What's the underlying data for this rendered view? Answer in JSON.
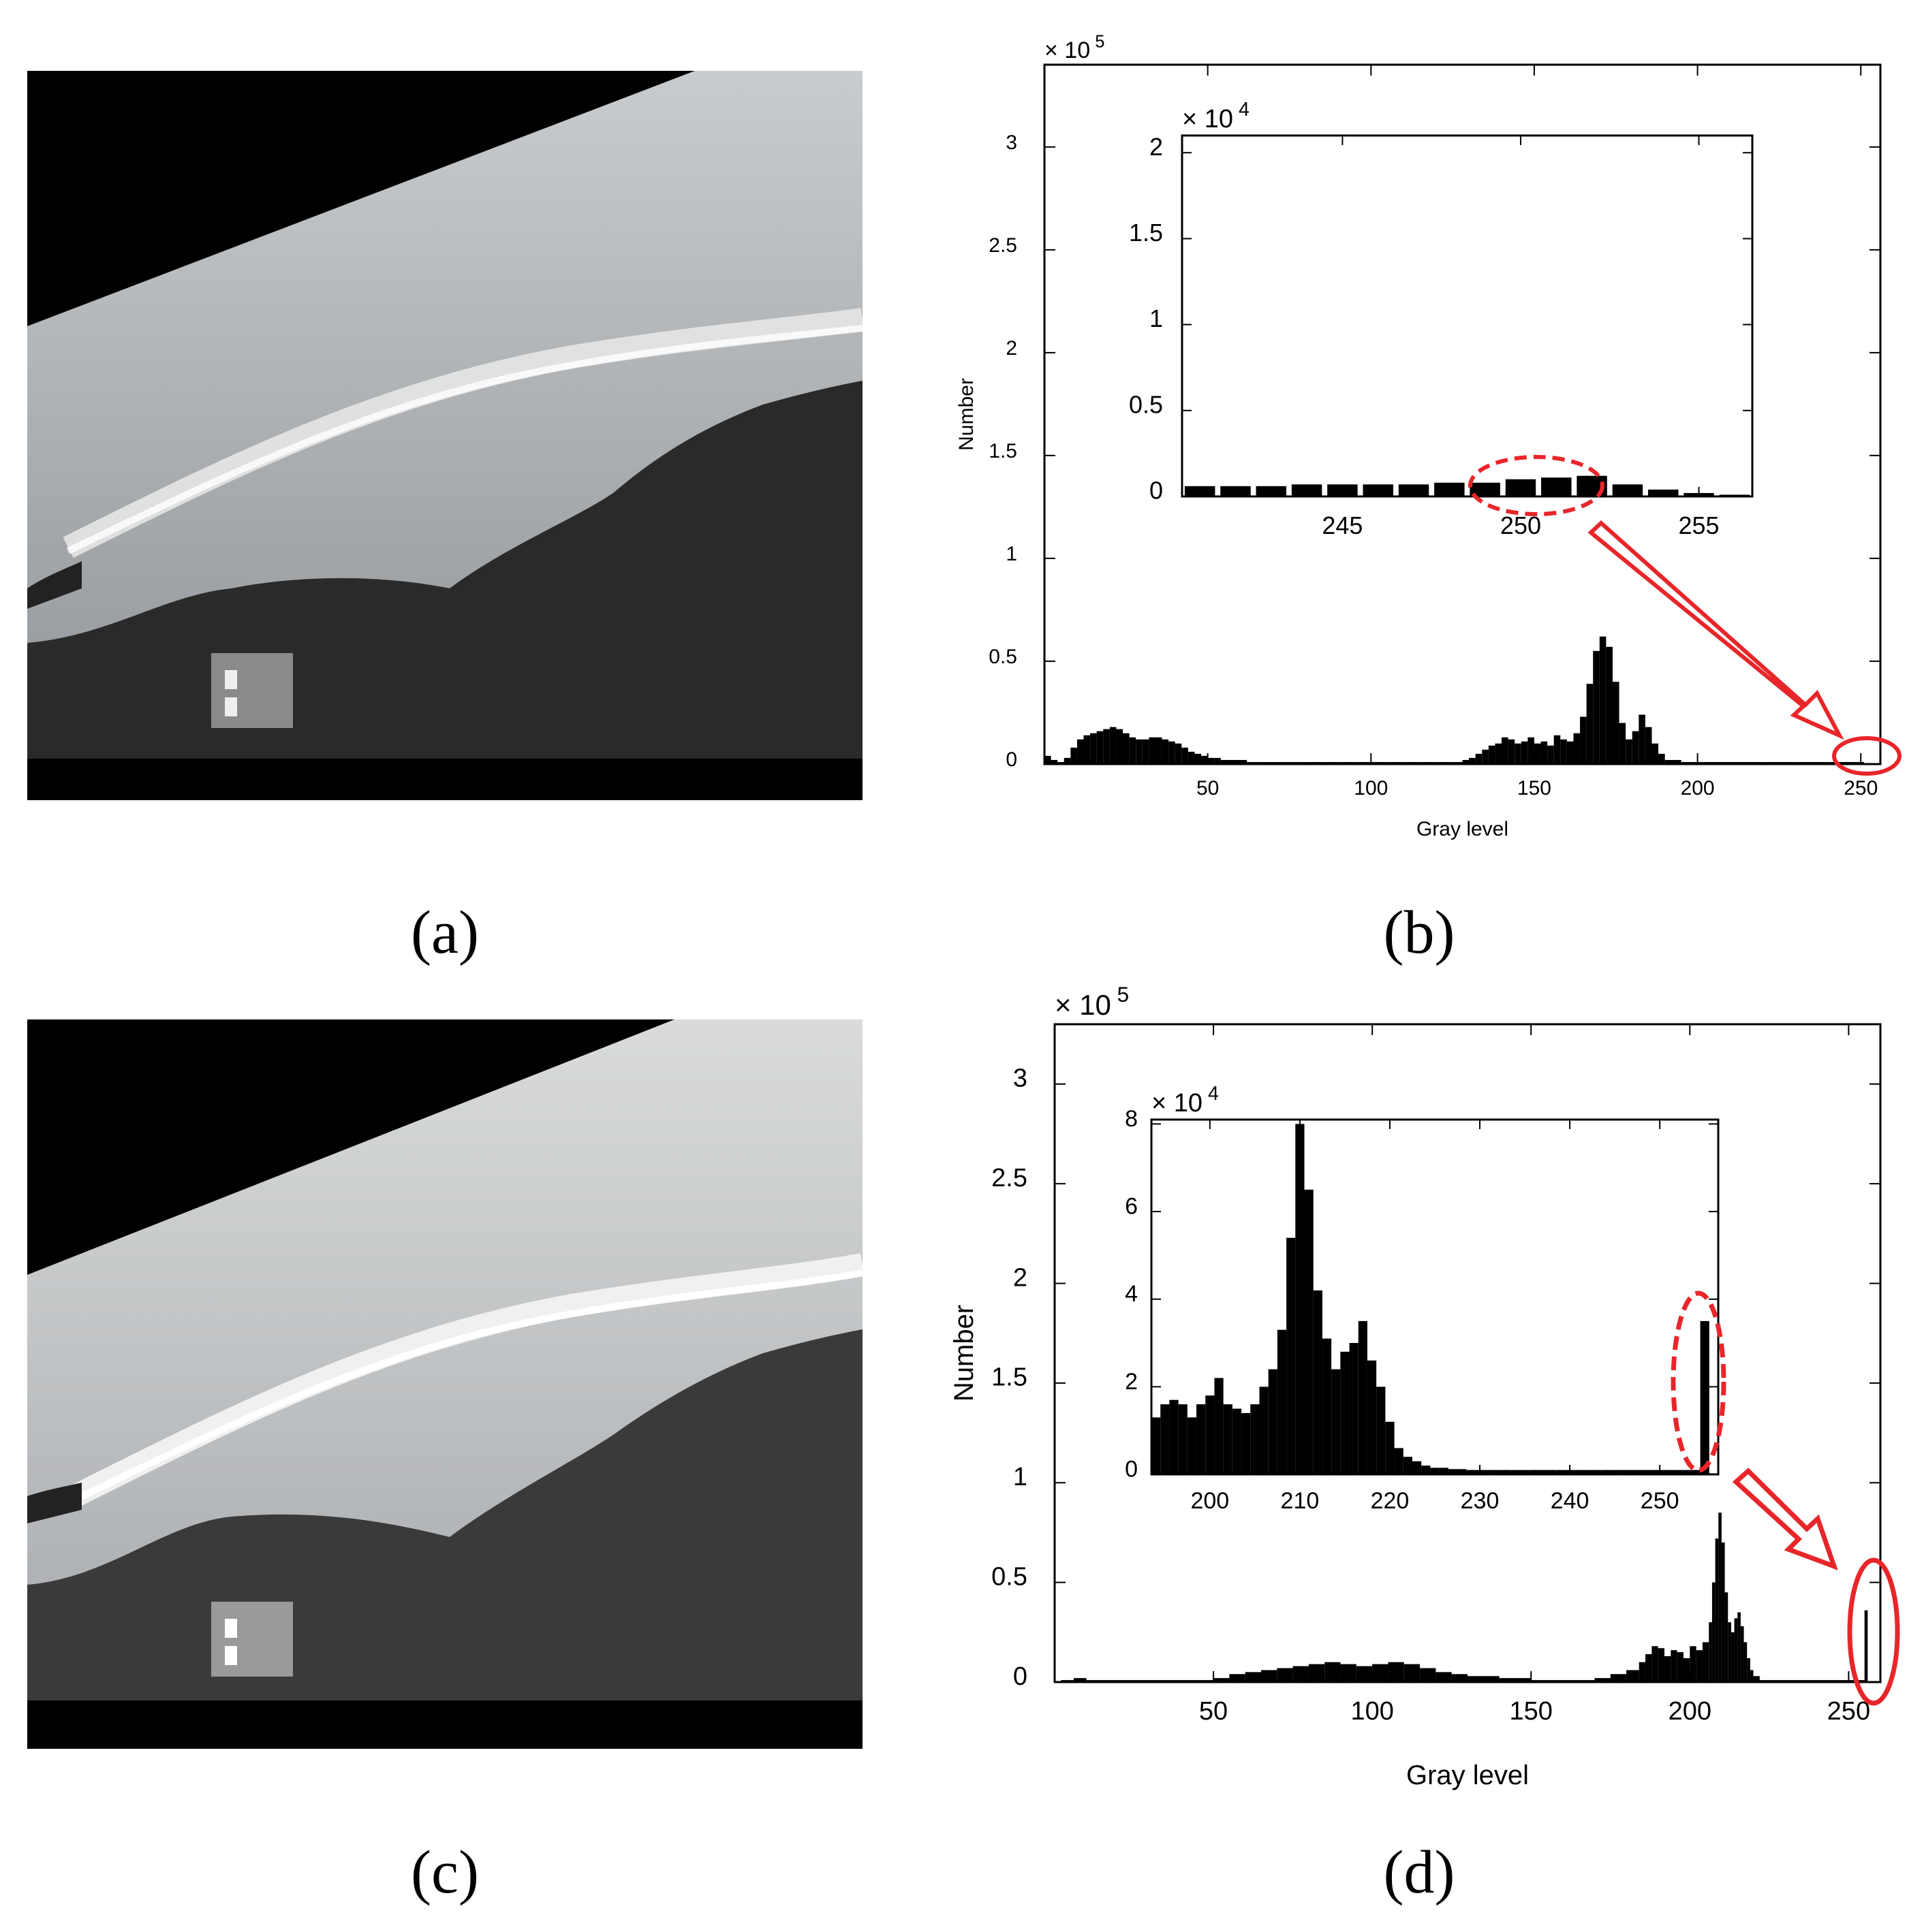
{
  "captions": {
    "a": "(a)",
    "b": "(b)",
    "c": "(c)",
    "d": "(d)"
  },
  "photos": {
    "a": {
      "sky_top": "#c9ccce",
      "sky_bottom": "#8e9296",
      "ground": "#2a2a2a",
      "tone": "original"
    },
    "c": {
      "sky_top": "#d9dbdc",
      "sky_bottom": "#a3a6a9",
      "ground": "#3a3a3a",
      "tone": "enhanced"
    }
  },
  "colors": {
    "bars": "#000000",
    "annotation": "#e8262a",
    "frame": "#000000"
  },
  "chart_data": [
    {
      "id": "b-main",
      "type": "bar",
      "title": "",
      "xlabel": "Gray level",
      "ylabel": "Number",
      "exponent_label": "× 10",
      "exponent_power": "5",
      "xlim": [
        0,
        256
      ],
      "ylim": [
        0,
        3.4
      ],
      "xticks": [
        50,
        100,
        150,
        200,
        250
      ],
      "xtick_labels": [
        "50",
        "100",
        "150",
        "200",
        "250"
      ],
      "yticks": [
        0,
        0.5,
        1,
        1.5,
        2,
        2.5,
        3
      ],
      "ytick_labels": [
        "0",
        "0.5",
        "1",
        "1.5",
        "2",
        "2.5",
        "3"
      ],
      "x": [
        0,
        2,
        4,
        6,
        8,
        10,
        12,
        14,
        16,
        18,
        20,
        22,
        24,
        26,
        28,
        30,
        32,
        34,
        36,
        38,
        40,
        42,
        44,
        46,
        48,
        50,
        52,
        54,
        56,
        58,
        60,
        62,
        64,
        66,
        68,
        70,
        72,
        74,
        76,
        78,
        80,
        85,
        90,
        95,
        100,
        105,
        110,
        115,
        120,
        125,
        128,
        130,
        132,
        134,
        136,
        138,
        140,
        142,
        144,
        146,
        148,
        150,
        152,
        154,
        156,
        158,
        160,
        162,
        164,
        166,
        168,
        170,
        172,
        174,
        176,
        178,
        180,
        182,
        184,
        186,
        188,
        190,
        195,
        200,
        210,
        220,
        230,
        240,
        250
      ],
      "values": [
        0.04,
        0.02,
        0.01,
        0.03,
        0.08,
        0.12,
        0.14,
        0.15,
        0.16,
        0.17,
        0.18,
        0.17,
        0.15,
        0.13,
        0.12,
        0.12,
        0.13,
        0.13,
        0.12,
        0.11,
        0.1,
        0.08,
        0.06,
        0.05,
        0.04,
        0.03,
        0.03,
        0.02,
        0.02,
        0.02,
        0.02,
        0.01,
        0.01,
        0.01,
        0.01,
        0.01,
        0.01,
        0.01,
        0.01,
        0.01,
        0.01,
        0.01,
        0.01,
        0.01,
        0.01,
        0.01,
        0.01,
        0.01,
        0.01,
        0.01,
        0.02,
        0.03,
        0.05,
        0.07,
        0.09,
        0.1,
        0.13,
        0.12,
        0.1,
        0.11,
        0.13,
        0.1,
        0.11,
        0.09,
        0.14,
        0.12,
        0.11,
        0.15,
        0.23,
        0.39,
        0.55,
        0.62,
        0.57,
        0.4,
        0.2,
        0.12,
        0.16,
        0.24,
        0.18,
        0.1,
        0.05,
        0.02,
        0.01,
        0.01,
        0.01,
        0.01,
        0.01,
        0.01,
        0.01
      ]
    },
    {
      "id": "b-inset",
      "type": "bar",
      "title": "",
      "xlabel": "",
      "ylabel": "",
      "exponent_label": "× 10",
      "exponent_power": "4",
      "xlim": [
        240.5,
        256.5
      ],
      "ylim": [
        0,
        2.1
      ],
      "xticks": [
        245,
        250,
        255
      ],
      "xtick_labels": [
        "245",
        "250",
        "255"
      ],
      "yticks": [
        0,
        0.5,
        1,
        1.5,
        2
      ],
      "ytick_labels": [
        "0",
        "0.5",
        "1",
        "1.5",
        "2"
      ],
      "x": [
        241,
        242,
        243,
        244,
        245,
        246,
        247,
        248,
        249,
        250,
        251,
        252,
        253,
        254,
        255,
        256
      ],
      "values": [
        0.06,
        0.06,
        0.06,
        0.07,
        0.07,
        0.07,
        0.07,
        0.08,
        0.08,
        0.1,
        0.11,
        0.12,
        0.07,
        0.04,
        0.02,
        0.01
      ]
    },
    {
      "id": "d-main",
      "type": "bar",
      "title": "",
      "xlabel": "Gray level",
      "ylabel": "Number",
      "exponent_label": "× 10",
      "exponent_power": "5",
      "xlim": [
        0,
        260
      ],
      "ylim": [
        0,
        3.3
      ],
      "xticks": [
        50,
        100,
        150,
        200,
        250
      ],
      "xtick_labels": [
        "50",
        "100",
        "150",
        "200",
        "250"
      ],
      "yticks": [
        0,
        0.5,
        1,
        1.5,
        2,
        2.5,
        3
      ],
      "ytick_labels": [
        "0",
        "0.5",
        "1",
        "1.5",
        "2",
        "2.5",
        "3"
      ],
      "x": [
        2,
        6,
        10,
        20,
        30,
        40,
        45,
        50,
        55,
        60,
        65,
        70,
        75,
        80,
        85,
        90,
        95,
        100,
        105,
        110,
        115,
        120,
        125,
        130,
        140,
        150,
        160,
        170,
        175,
        180,
        184,
        186,
        188,
        190,
        192,
        194,
        196,
        198,
        200,
        202,
        204,
        206,
        207,
        208,
        209,
        210,
        211,
        212,
        213,
        214,
        215,
        216,
        217,
        218,
        219,
        220,
        222,
        225,
        230,
        240,
        250,
        255
      ],
      "values": [
        0.01,
        0.02,
        0.01,
        0.01,
        0.01,
        0.01,
        0.01,
        0.02,
        0.04,
        0.05,
        0.06,
        0.07,
        0.08,
        0.09,
        0.1,
        0.09,
        0.08,
        0.09,
        0.1,
        0.09,
        0.07,
        0.05,
        0.04,
        0.03,
        0.02,
        0.01,
        0.01,
        0.02,
        0.04,
        0.06,
        0.1,
        0.14,
        0.18,
        0.17,
        0.13,
        0.16,
        0.15,
        0.12,
        0.18,
        0.16,
        0.2,
        0.3,
        0.5,
        0.72,
        0.85,
        0.7,
        0.45,
        0.3,
        0.25,
        0.32,
        0.35,
        0.28,
        0.2,
        0.12,
        0.06,
        0.03,
        0.01,
        0.01,
        0.01,
        0.01,
        0.01,
        0.36
      ]
    },
    {
      "id": "d-inset",
      "type": "bar",
      "title": "",
      "xlabel": "",
      "ylabel": "",
      "exponent_label": "× 10",
      "exponent_power": "4",
      "xlim": [
        193.5,
        256.5
      ],
      "ylim": [
        0,
        8.1
      ],
      "xticks": [
        200,
        210,
        220,
        230,
        240,
        250
      ],
      "xtick_labels": [
        "200",
        "210",
        "220",
        "230",
        "240",
        "250"
      ],
      "yticks": [
        0,
        2,
        4,
        6,
        8
      ],
      "ytick_labels": [
        "0",
        "2",
        "4",
        "6",
        "8"
      ],
      "x": [
        194,
        195,
        196,
        197,
        198,
        199,
        200,
        201,
        202,
        203,
        204,
        205,
        206,
        207,
        208,
        209,
        210,
        211,
        212,
        213,
        214,
        215,
        216,
        217,
        218,
        219,
        220,
        221,
        222,
        223,
        224,
        225,
        226,
        227,
        228,
        229,
        230,
        231,
        232,
        233,
        234,
        235,
        236,
        237,
        238,
        239,
        240,
        241,
        242,
        243,
        244,
        245,
        246,
        247,
        248,
        249,
        250,
        251,
        252,
        253,
        254,
        255
      ],
      "values": [
        1.3,
        1.6,
        1.7,
        1.6,
        1.3,
        1.6,
        1.8,
        2.2,
        1.6,
        1.5,
        1.4,
        1.6,
        2.0,
        2.4,
        3.3,
        5.4,
        8.0,
        6.5,
        4.2,
        3.1,
        2.4,
        2.8,
        3.0,
        3.5,
        2.6,
        2.0,
        1.2,
        0.6,
        0.4,
        0.3,
        0.2,
        0.15,
        0.15,
        0.12,
        0.12,
        0.1,
        0.1,
        0.1,
        0.1,
        0.1,
        0.1,
        0.1,
        0.1,
        0.1,
        0.1,
        0.1,
        0.1,
        0.1,
        0.1,
        0.1,
        0.1,
        0.1,
        0.1,
        0.1,
        0.1,
        0.1,
        0.1,
        0.1,
        0.1,
        0.1,
        0.1,
        3.5
      ]
    }
  ]
}
